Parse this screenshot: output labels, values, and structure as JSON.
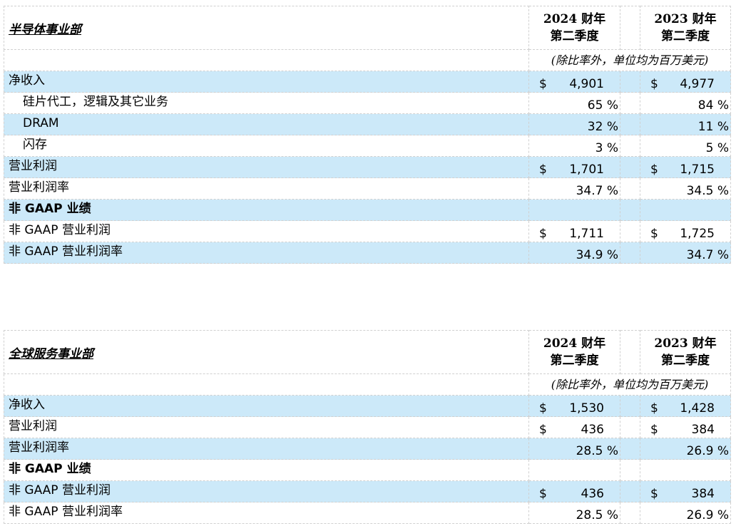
{
  "tables": [
    {
      "title": "半导体事业部",
      "headers": [
        [
          "2024 财年",
          "第二季度"
        ],
        [
          "2023 财年",
          "第二季度"
        ]
      ],
      "unit": "(除比率外，单位均为百万美元)",
      "rows": [
        {
          "label": "净收入",
          "c1": "$",
          "v1": "4,901",
          "c2": "$",
          "v2": "4,977"
        },
        {
          "label": "硅片代工，逻辑及其它业务",
          "v1": "65 %",
          "v2": "84 %"
        },
        {
          "label": "DRAM",
          "v1": "32 %",
          "v2": "11 %"
        },
        {
          "label": "闪存",
          "v1": "3 %",
          "v2": "5 %"
        },
        {
          "label": "营业利润",
          "c1": "$",
          "v1": "1,701",
          "c2": "$",
          "v2": "1,715"
        },
        {
          "label": "营业利润率",
          "v1": "34.7 %",
          "v2": "34.5 %"
        },
        {
          "label": "非 GAAP 业绩"
        },
        {
          "label": "非 GAAP 营业利润",
          "c1": "$",
          "v1": "1,711",
          "c2": "$",
          "v2": "1,725"
        },
        {
          "label": "非 GAAP 营业利润率",
          "v1": "34.9 %",
          "v2": "34.7 %"
        }
      ]
    },
    {
      "title": "全球服务事业部",
      "headers": [
        [
          "2024 财年",
          "第二季度"
        ],
        [
          "2023 财年",
          "第二季度"
        ]
      ],
      "unit": "(除比率外，单位均为百万美元)",
      "rows": [
        {
          "label": "净收入",
          "c1": "$",
          "v1": "1,530",
          "c2": "$",
          "v2": "1,428"
        },
        {
          "label": "营业利润",
          "c1": "$",
          "v1": "436",
          "c2": "$",
          "v2": "384"
        },
        {
          "label": "营业利润率",
          "v1": "28.5 %",
          "v2": "26.9 %"
        },
        {
          "label": "非 GAAP 业绩"
        },
        {
          "label": "非 GAAP 营业利润",
          "c1": "$",
          "v1": "436",
          "c2": "$",
          "v2": "384"
        },
        {
          "label": "非 GAAP 营业利润率",
          "v1": "28.5 %",
          "v2": "26.9 %"
        }
      ]
    }
  ]
}
